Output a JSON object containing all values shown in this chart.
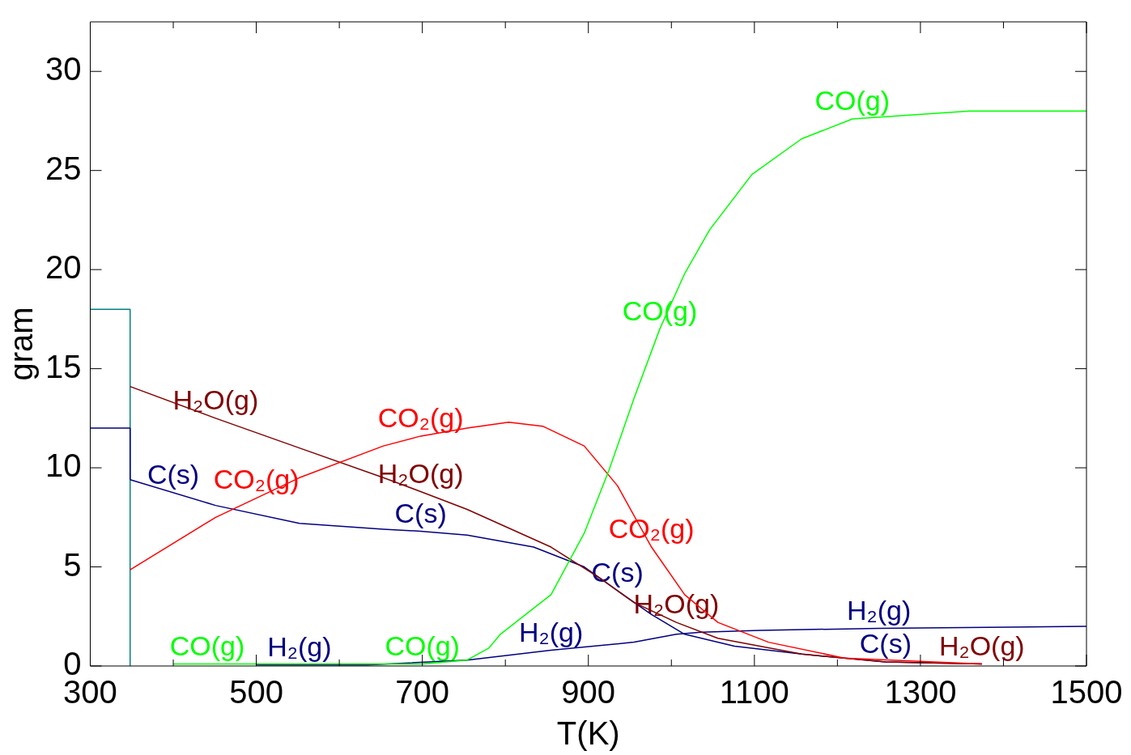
{
  "chart_data": {
    "type": "line",
    "xlabel": "T(K)",
    "ylabel": "gram",
    "xlim": [
      300,
      1500
    ],
    "ylim": [
      0,
      32.5
    ],
    "xticks": [
      300,
      {
        "value": 400,
        "label": null
      },
      500,
      {
        "value": 600,
        "label": null
      },
      700,
      {
        "value": 800,
        "label": null
      },
      900,
      {
        "value": 1000,
        "label": null
      },
      1100,
      {
        "value": 1200,
        "label": null
      },
      1300,
      {
        "value": 1400,
        "label": null
      },
      1500
    ],
    "yticks": [
      0,
      5,
      10,
      15,
      20,
      25,
      30
    ],
    "grid": false,
    "legend": false,
    "marker": "none",
    "line_style": "solid",
    "series": [
      {
        "name": "CO(g)",
        "color": "#00ff00",
        "x": [
          400,
          550,
          633,
          700,
          754,
          780,
          794,
          855,
          895,
          925,
          955,
          986,
          1016,
          1046,
          1097,
          1157,
          1218,
          1359,
          1500
        ],
        "values": [
          0.1,
          0.1,
          0.1,
          0.1,
          0.3,
          0.9,
          1.6,
          3.6,
          6.7,
          9.9,
          13.5,
          17.0,
          19.8,
          22.0,
          24.8,
          26.6,
          27.6,
          28.0,
          28.0
        ]
      },
      {
        "name": "CO₂(g)",
        "color": "#ff0000",
        "x": [
          348,
          451,
          552,
          653,
          698,
          754,
          804,
          845,
          895,
          935,
          976,
          1016,
          1056,
          1117,
          1208,
          1374
        ],
        "values": [
          4.85,
          7.5,
          9.5,
          11.1,
          11.6,
          12.0,
          12.3,
          12.1,
          11.1,
          9.1,
          6.0,
          3.6,
          2.2,
          1.2,
          0.4,
          0.1
        ]
      },
      {
        "name": "H₂O(g)",
        "color": "#800000",
        "x": [
          348,
          451,
          552,
          653,
          698,
          754,
          855,
          915,
          955,
          1006,
          1056,
          1157,
          1258,
          1374
        ],
        "values": [
          14.1,
          12.5,
          11.0,
          9.5,
          8.8,
          7.9,
          6.0,
          4.4,
          3.2,
          2.2,
          1.4,
          0.6,
          0.2,
          0.1
        ]
      },
      {
        "name": "C(s)",
        "color": "#000080",
        "x": [
          300,
          348,
          348,
          451,
          552,
          653,
          698,
          754,
          834,
          895,
          935,
          976,
          1016,
          1076,
          1157,
          1258,
          1374
        ],
        "values": [
          12.0,
          12.0,
          9.4,
          8.1,
          7.2,
          6.9,
          6.8,
          6.6,
          6.0,
          5.0,
          3.8,
          2.6,
          1.6,
          1.0,
          0.6,
          0.2,
          0.1
        ]
      },
      {
        "name": "H₂(g)",
        "color": "#000080",
        "x": [
          500,
          552,
          633,
          754,
          855,
          955,
          1006,
          1036,
          1107,
          1250,
          1500
        ],
        "values": [
          0.05,
          0.05,
          0.05,
          0.3,
          0.8,
          1.2,
          1.6,
          1.7,
          1.8,
          1.9,
          2.0
        ]
      },
      {
        "color": "#008080",
        "x": [
          300,
          348,
          348
        ],
        "values": [
          18.0,
          18.0,
          0
        ]
      }
    ],
    "annotations": [
      {
        "text": "CO(g)",
        "x": 986,
        "y": 17.0
      },
      {
        "text": "CO(g)",
        "x": 441,
        "y": 0.1
      },
      {
        "text": "CO(g)",
        "x": 700,
        "y": 0.1
      },
      {
        "text": "CO₂(g)",
        "x": 500,
        "y": 8.5
      },
      {
        "text": "CO₂(g)",
        "x": 976,
        "y": 6.0
      },
      {
        "text": "H₂O(g)",
        "x": 451,
        "y": 12.5
      },
      {
        "text": "H₂O(g)",
        "x": 1006,
        "y": 2.2
      },
      {
        "text": "H₂O(g)",
        "x": 1374,
        "y": 0.1
      },
      {
        "text": "C(s)",
        "x": 400,
        "y": 8.75
      },
      {
        "text": "C(s)",
        "x": 935,
        "y": 3.8
      },
      {
        "text": "C(s)",
        "x": 1258,
        "y": 0.2
      },
      {
        "text": "H₂(g)",
        "x": 552,
        "y": 0.05
      },
      {
        "text": "H₂(g)",
        "x": 855,
        "y": 0.8
      }
    ]
  }
}
